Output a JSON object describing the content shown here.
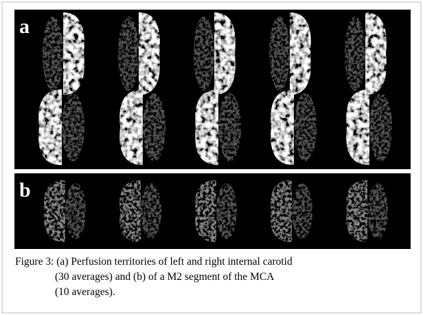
{
  "figure": {
    "panels": [
      {
        "label": "a"
      },
      {
        "label": "b"
      }
    ],
    "caption": {
      "lines": [
        "Figure 3: (a) Perfusion territories of left and right internal carotid",
        "(30 averages) and (b) of a M2 segment of the MCA",
        "(10 averages)."
      ]
    }
  }
}
